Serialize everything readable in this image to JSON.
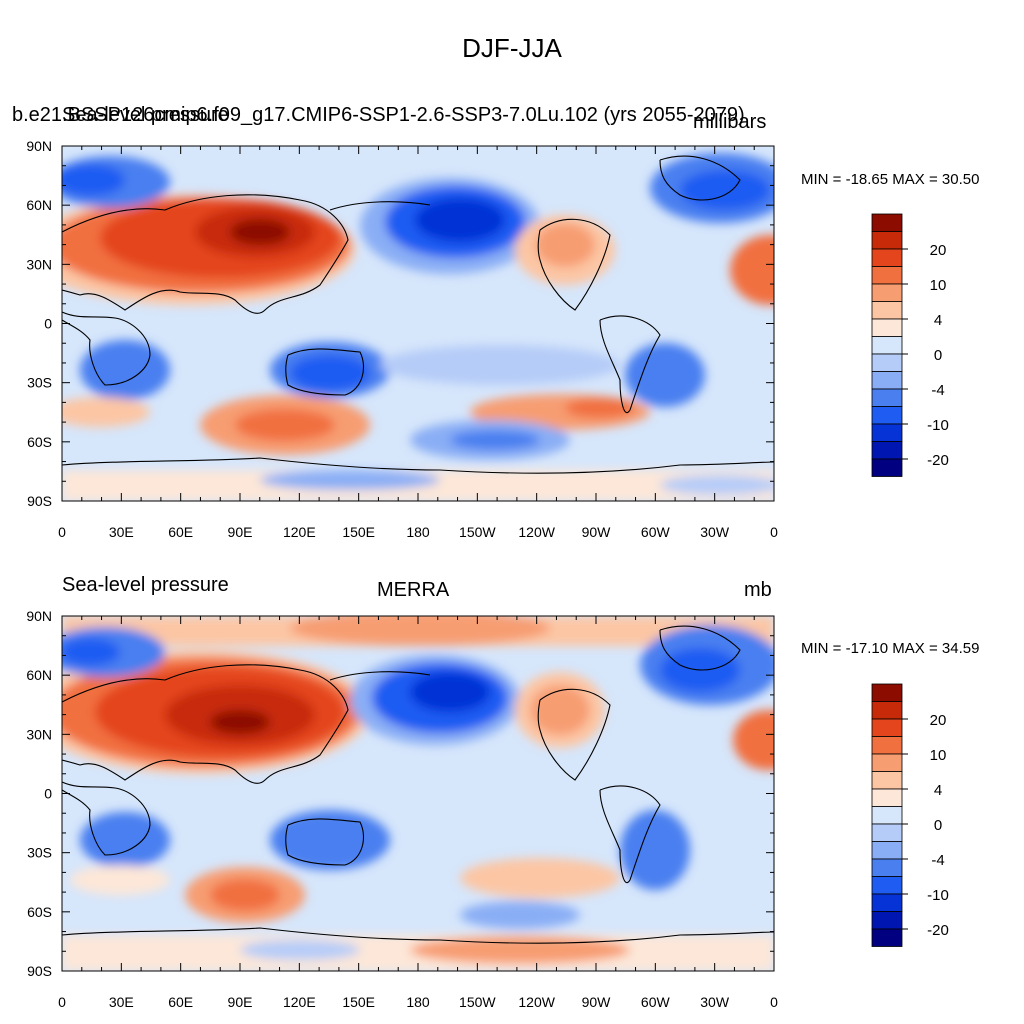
{
  "figure": {
    "title": "DJF-JJA"
  },
  "colors": {
    "levels": [
      "#000080",
      "#0016b0",
      "#0533d6",
      "#1f5cf2",
      "#4a7ff0",
      "#8aaef5",
      "#b5ccf8",
      "#d6e6fb",
      "#fde7d8",
      "#fcc6a4",
      "#f79d72",
      "#f1703f",
      "#e4451c",
      "#c72a08",
      "#8c0d00"
    ],
    "coast": "#000000"
  },
  "panels": [
    {
      "id": "model",
      "left_label_a": "b.e21.BSSP126cmip6.f09_g17.CMIP6-SSP1-2.6-SSP3-7.0Lu.102 (yrs 2055-2079)",
      "left_label_b": "Sea-level pressure",
      "right_label_a": "millibars",
      "center_label": "",
      "minmax": "MIN = -18.65 MAX =  30.50"
    },
    {
      "id": "obs",
      "left_label": "Sea-level pressure",
      "center_label": "MERRA",
      "right_label": "mb",
      "minmax": "MIN = -17.10 MAX =  34.59"
    }
  ],
  "axes": {
    "lat_labels": [
      "90N",
      "60N",
      "30N",
      "0",
      "30S",
      "60S",
      "90S"
    ],
    "lon_labels": [
      "0",
      "30E",
      "60E",
      "90E",
      "120E",
      "150E",
      "180",
      "150W",
      "120W",
      "90W",
      "60W",
      "30W",
      "0"
    ]
  },
  "colorbar": {
    "tick_labels": [
      "20",
      "10",
      "4",
      "0",
      "-4",
      "-10",
      "-20"
    ]
  }
}
